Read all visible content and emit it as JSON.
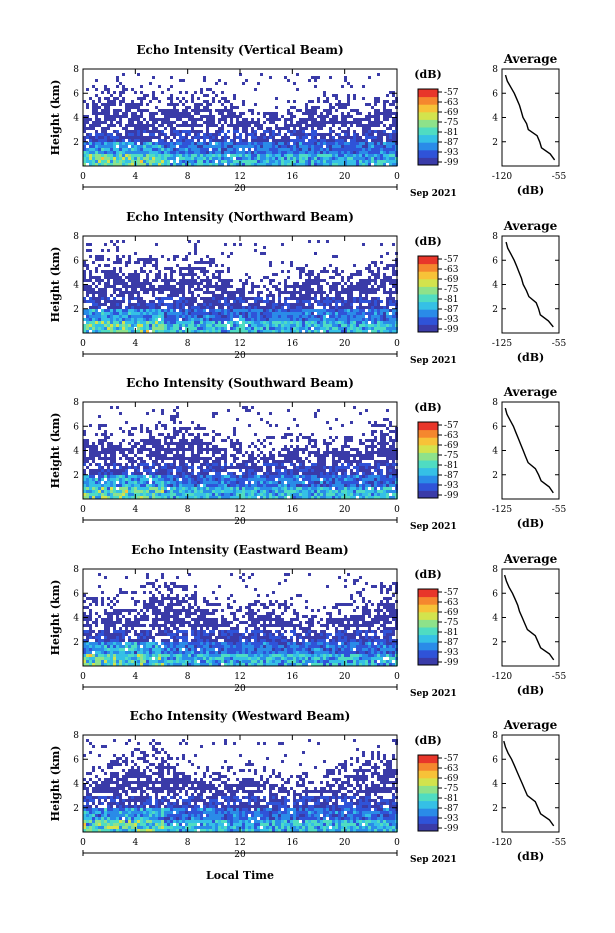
{
  "figure": {
    "date_label": "Sep 2021",
    "day_label": "20",
    "xlabel_bottom": "Local Time",
    "colorbar_unit": "(dB)",
    "colorbar_ticks": [
      "-57",
      "-63",
      "-69",
      "-75",
      "-81",
      "-87",
      "-93",
      "-99"
    ],
    "colormap": [
      "#3a3ba8",
      "#2f53d8",
      "#2a8be8",
      "#35c0e6",
      "#4fdcc2",
      "#8ee28a",
      "#d3e34d",
      "#f7c238",
      "#f5872e",
      "#e8362a"
    ],
    "empty_color": "#ffffff"
  },
  "chart_data": [
    {
      "type": "heatmap",
      "title": "Echo Intensity (Vertical Beam)",
      "ylabel": "Height (km)",
      "xlim": [
        0,
        24
      ],
      "ylim": [
        0,
        8
      ],
      "xticks": [
        "0",
        "4",
        "8",
        "12",
        "16",
        "20",
        "0"
      ],
      "yticks": [
        "2",
        "4",
        "6",
        "8"
      ],
      "colorbar": {
        "label": "(dB)",
        "range": [
          -99,
          -57
        ]
      },
      "profile": {
        "title": "Average",
        "xlabel": "(dB)",
        "xlim": [
          -120,
          -55
        ],
        "xticks": [
          "-120",
          "-55"
        ],
        "yticks": [
          "2",
          "4",
          "6",
          "8"
        ],
        "height_km": [
          0.5,
          1.0,
          1.5,
          2.0,
          2.5,
          3.0,
          3.5,
          4.0,
          4.5,
          5.0,
          5.5,
          6.0,
          6.5,
          7.0,
          7.5
        ],
        "dB": [
          -60,
          -65,
          -75,
          -77,
          -80,
          -90,
          -92,
          -96,
          -98,
          -100,
          -103,
          -106,
          -110,
          -114,
          -116
        ]
      }
    },
    {
      "type": "heatmap",
      "title": "Echo Intensity (Northward Beam)",
      "ylabel": "Height (km)",
      "xlim": [
        0,
        24
      ],
      "ylim": [
        0,
        8
      ],
      "xticks": [
        "0",
        "4",
        "8",
        "12",
        "16",
        "20",
        "0"
      ],
      "yticks": [
        "2",
        "4",
        "6",
        "8"
      ],
      "colorbar": {
        "label": "(dB)",
        "range": [
          -99,
          -57
        ]
      },
      "profile": {
        "title": "Average",
        "xlabel": "(dB)",
        "xlim": [
          -125,
          -55
        ],
        "xticks": [
          "-125",
          "-55"
        ],
        "yticks": [
          "2",
          "4",
          "6",
          "8"
        ],
        "height_km": [
          0.5,
          1.0,
          1.5,
          2.0,
          2.5,
          3.0,
          3.5,
          4.0,
          4.5,
          5.0,
          5.5,
          6.0,
          6.5,
          7.0,
          7.5
        ],
        "dB": [
          -62,
          -68,
          -78,
          -80,
          -83,
          -92,
          -95,
          -99,
          -101,
          -104,
          -107,
          -110,
          -114,
          -118,
          -120
        ]
      }
    },
    {
      "type": "heatmap",
      "title": "Echo Intensity (Southward Beam)",
      "ylabel": "Height (km)",
      "xlim": [
        0,
        24
      ],
      "ylim": [
        0,
        8
      ],
      "xticks": [
        "0",
        "4",
        "8",
        "12",
        "16",
        "20",
        "0"
      ],
      "yticks": [
        "2",
        "4",
        "6",
        "8"
      ],
      "colorbar": {
        "label": "(dB)",
        "range": [
          -99,
          -57
        ]
      },
      "profile": {
        "title": "Average",
        "xlabel": "(dB)",
        "xlim": [
          -125,
          -55
        ],
        "xticks": [
          "-125",
          "-55"
        ],
        "yticks": [
          "2",
          "4",
          "6",
          "8"
        ],
        "height_km": [
          0.5,
          1.0,
          1.5,
          2.0,
          2.5,
          3.0,
          3.5,
          4.0,
          4.5,
          5.0,
          5.5,
          6.0,
          6.5,
          7.0,
          7.5
        ],
        "dB": [
          -62,
          -67,
          -77,
          -80,
          -84,
          -93,
          -96,
          -99,
          -102,
          -105,
          -108,
          -111,
          -115,
          -119,
          -121
        ]
      }
    },
    {
      "type": "heatmap",
      "title": "Echo Intensity (Eastward Beam)",
      "ylabel": "Height (km)",
      "xlim": [
        0,
        24
      ],
      "ylim": [
        0,
        8
      ],
      "xticks": [
        "0",
        "4",
        "8",
        "12",
        "16",
        "20",
        "0"
      ],
      "yticks": [
        "2",
        "4",
        "6",
        "8"
      ],
      "colorbar": {
        "label": "(dB)",
        "range": [
          -99,
          -57
        ]
      },
      "profile": {
        "title": "Average",
        "xlabel": "(dB)",
        "xlim": [
          -120,
          -55
        ],
        "xticks": [
          "-120",
          "-55"
        ],
        "yticks": [
          "2",
          "4",
          "6",
          "8"
        ],
        "height_km": [
          0.5,
          1.0,
          1.5,
          2.0,
          2.5,
          3.0,
          3.5,
          4.0,
          4.5,
          5.0,
          5.5,
          6.0,
          6.5,
          7.0,
          7.5
        ],
        "dB": [
          -61,
          -66,
          -76,
          -79,
          -82,
          -91,
          -94,
          -97,
          -100,
          -102,
          -105,
          -108,
          -112,
          -115,
          -117
        ]
      }
    },
    {
      "type": "heatmap",
      "title": "Echo Intensity (Westward Beam)",
      "ylabel": "Height (km)",
      "xlim": [
        0,
        24
      ],
      "ylim": [
        0,
        8
      ],
      "xticks": [
        "0",
        "4",
        "8",
        "12",
        "16",
        "20",
        "0"
      ],
      "yticks": [
        "2",
        "4",
        "6",
        "8"
      ],
      "colorbar": {
        "label": "(dB)",
        "range": [
          -99,
          -57
        ]
      },
      "profile": {
        "title": "Average",
        "xlabel": "(dB)",
        "xlim": [
          -120,
          -55
        ],
        "xticks": [
          "-120",
          "-55"
        ],
        "yticks": [
          "2",
          "4",
          "6",
          "8"
        ],
        "height_km": [
          0.5,
          1.0,
          1.5,
          2.0,
          2.5,
          3.0,
          3.5,
          4.0,
          4.5,
          5.0,
          5.5,
          6.0,
          6.5,
          7.0,
          7.5
        ],
        "dB": [
          -61,
          -66,
          -76,
          -79,
          -82,
          -91,
          -94,
          -97,
          -100,
          -103,
          -106,
          -109,
          -113,
          -116,
          -118
        ]
      }
    }
  ]
}
